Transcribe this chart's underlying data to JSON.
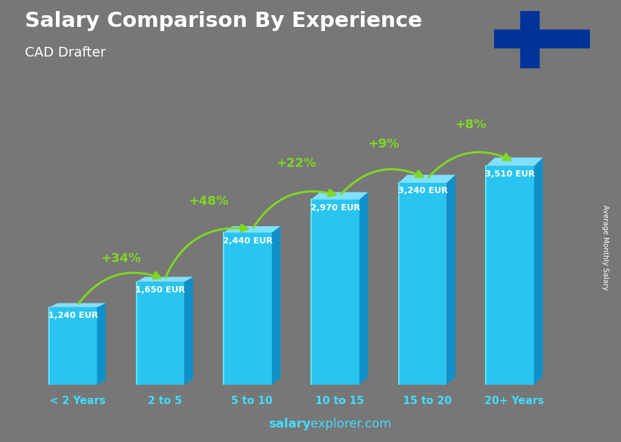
{
  "title": "Salary Comparison By Experience",
  "subtitle": "CAD Drafter",
  "categories": [
    "< 2 Years",
    "2 to 5",
    "5 to 10",
    "10 to 15",
    "15 to 20",
    "20+ Years"
  ],
  "values": [
    1240,
    1650,
    2440,
    2970,
    3240,
    3510
  ],
  "salary_labels": [
    "1,240 EUR",
    "1,650 EUR",
    "2,440 EUR",
    "2,970 EUR",
    "3,240 EUR",
    "3,510 EUR"
  ],
  "pct_labels": [
    "+34%",
    "+48%",
    "+22%",
    "+9%",
    "+8%"
  ],
  "col_front": "#29C5F0",
  "col_top": "#80E0FF",
  "col_side": "#1090C8",
  "col_shadow": "#0D6A9A",
  "arrow_color": "#7FD820",
  "pct_color": "#7FD820",
  "salary_label_color": "#FFFFFF",
  "cat_label_color": "#40DDFF",
  "title_color": "#FFFFFF",
  "subtitle_color": "#FFFFFF",
  "watermark_bold": "salary",
  "watermark_normal": "explorer.com",
  "watermark_color": "#40DDFF",
  "ylabel": "Average Monthly Salary",
  "ylim": [
    0,
    4400
  ],
  "bg_top": "#888888",
  "bg_bottom": "#666666",
  "flag_white": "#FFFFFF",
  "flag_blue": "#003399"
}
